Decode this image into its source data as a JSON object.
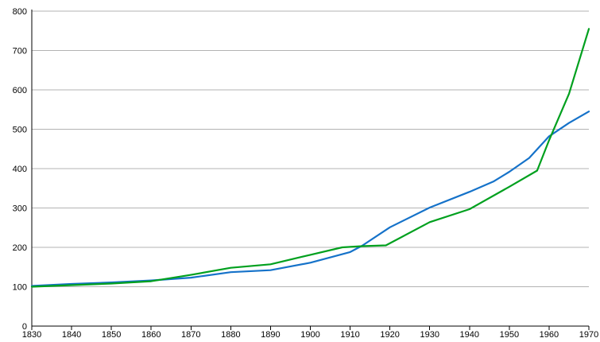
{
  "chart_data": {
    "type": "line",
    "title": "",
    "legend": "none",
    "grid": {
      "horizontal": true,
      "vertical": false,
      "color": "#b3b3b3"
    },
    "axis_color": "#000000",
    "background": "#ffffff",
    "x_axis": {
      "min": 1830,
      "max": 1970,
      "tick_step": 10,
      "tick_labels": [
        "1830",
        "1840",
        "1850",
        "1860",
        "1870",
        "1880",
        "1890",
        "1900",
        "1910",
        "1920",
        "1930",
        "1940",
        "1950",
        "1960",
        "1970"
      ]
    },
    "y_axis": {
      "min": 0,
      "max": 800,
      "tick_step": 100,
      "tick_labels": [
        "0",
        "100",
        "200",
        "300",
        "400",
        "500",
        "600",
        "700",
        "800"
      ]
    },
    "series": [
      {
        "name": "blue-series",
        "color": "#1572c9",
        "points": [
          [
            1830,
            102
          ],
          [
            1840,
            107
          ],
          [
            1850,
            111
          ],
          [
            1860,
            116
          ],
          [
            1870,
            123
          ],
          [
            1880,
            137
          ],
          [
            1890,
            142
          ],
          [
            1900,
            161
          ],
          [
            1910,
            188
          ],
          [
            1913,
            204
          ],
          [
            1920,
            251
          ],
          [
            1930,
            301
          ],
          [
            1940,
            341
          ],
          [
            1946,
            367
          ],
          [
            1950,
            392
          ],
          [
            1955,
            427
          ],
          [
            1960,
            482
          ],
          [
            1965,
            516
          ],
          [
            1970,
            545
          ]
        ]
      },
      {
        "name": "green-series",
        "color": "#00a01e",
        "points": [
          [
            1830,
            100
          ],
          [
            1840,
            104
          ],
          [
            1850,
            108
          ],
          [
            1860,
            114
          ],
          [
            1870,
            130
          ],
          [
            1880,
            148
          ],
          [
            1890,
            157
          ],
          [
            1900,
            181
          ],
          [
            1908,
            200
          ],
          [
            1913,
            203
          ],
          [
            1919,
            205
          ],
          [
            1930,
            264
          ],
          [
            1940,
            297
          ],
          [
            1950,
            354
          ],
          [
            1957,
            395
          ],
          [
            1960,
            472
          ],
          [
            1965,
            590
          ],
          [
            1970,
            755
          ]
        ]
      }
    ]
  }
}
